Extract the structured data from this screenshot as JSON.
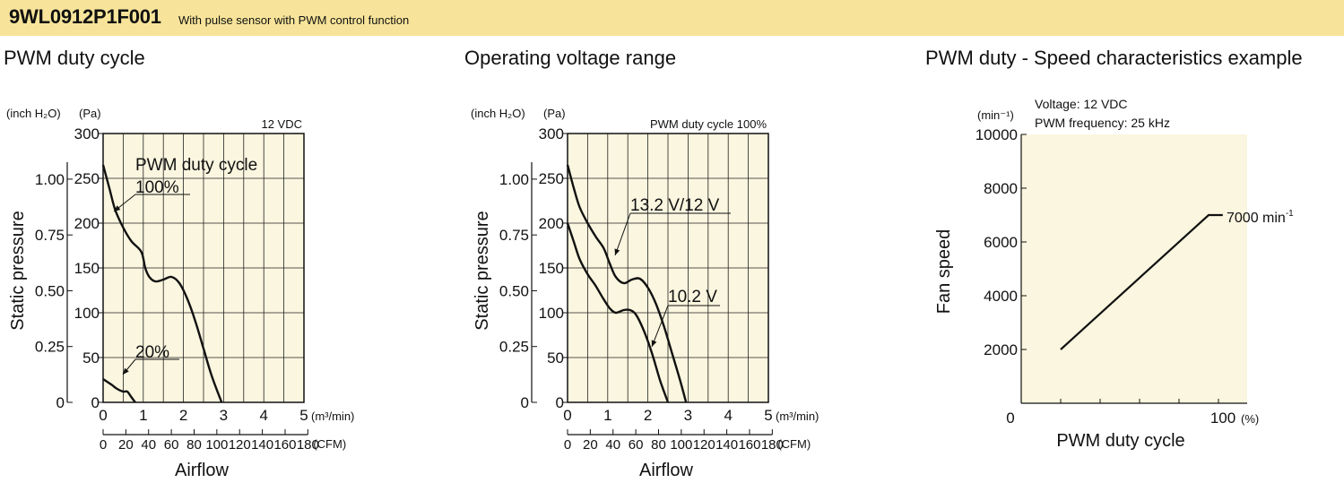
{
  "header": {
    "model": "9WL0912P1F001",
    "subtitle": "With pulse sensor with PWM control function",
    "background": "#f7e49a"
  },
  "plot_background": "#faf6df",
  "chart_data": [
    {
      "type": "line",
      "title": "PWM duty cycle",
      "condition": "12 VDC",
      "xlabel": "Airflow",
      "ylabel": "Static pressure",
      "x_unit": "(m³/min)",
      "x2_unit": "(CFM)",
      "y_unit_left": "(inch H₂O)",
      "y_unit_right": "(Pa)",
      "xlim": [
        0,
        5
      ],
      "ylim": [
        0,
        300
      ],
      "x_ticks": [
        "0",
        "1",
        "2",
        "3",
        "4",
        "5"
      ],
      "y_ticks": [
        "0",
        "50",
        "100",
        "150",
        "200",
        "250",
        "300"
      ],
      "y2_ticks": [
        "0",
        "0.25",
        "0.50",
        "0.75",
        "1.00"
      ],
      "x2_ticks": [
        "0",
        "20",
        "40",
        "60",
        "80",
        "100",
        "120",
        "140",
        "160",
        "180"
      ],
      "grid": true,
      "legend_title": "PWM duty cycle",
      "series": [
        {
          "name": "100%",
          "x": [
            0,
            0.15,
            0.3,
            0.5,
            0.7,
            0.95,
            1.05,
            1.15,
            1.3,
            1.5,
            1.7,
            1.9,
            2.1,
            2.3,
            2.5,
            2.7,
            2.95
          ],
          "y": [
            265,
            240,
            215,
            195,
            180,
            168,
            150,
            140,
            135,
            137,
            140,
            133,
            115,
            90,
            60,
            30,
            0
          ]
        },
        {
          "name": "20%",
          "x": [
            0,
            0.2,
            0.35,
            0.5,
            0.6,
            0.7,
            0.8
          ],
          "y": [
            26,
            20,
            15,
            12,
            12,
            6,
            0
          ]
        }
      ]
    },
    {
      "type": "line",
      "title": "Operating voltage range",
      "condition": "PWM duty cycle 100%",
      "xlabel": "Airflow",
      "ylabel": "Static pressure",
      "x_unit": "(m³/min)",
      "x2_unit": "(CFM)",
      "y_unit_left": "(inch H₂O)",
      "y_unit_right": "(Pa)",
      "xlim": [
        0,
        5
      ],
      "ylim": [
        0,
        300
      ],
      "x_ticks": [
        "0",
        "1",
        "2",
        "3",
        "4",
        "5"
      ],
      "y_ticks": [
        "0",
        "50",
        "100",
        "150",
        "200",
        "250",
        "300"
      ],
      "y2_ticks": [
        "0",
        "0.25",
        "0.50",
        "0.75",
        "1.00"
      ],
      "x2_ticks": [
        "0",
        "20",
        "40",
        "60",
        "80",
        "100",
        "120",
        "140",
        "160",
        "180"
      ],
      "grid": true,
      "series": [
        {
          "name": "13.2 V/12 V",
          "x": [
            0,
            0.15,
            0.3,
            0.5,
            0.7,
            0.9,
            1.05,
            1.2,
            1.4,
            1.6,
            1.8,
            2.0,
            2.2,
            2.4,
            2.6,
            2.8,
            2.95
          ],
          "y": [
            265,
            240,
            218,
            200,
            185,
            172,
            155,
            140,
            133,
            137,
            138,
            128,
            110,
            85,
            55,
            25,
            0
          ]
        },
        {
          "name": "10.2 V",
          "x": [
            0,
            0.15,
            0.3,
            0.5,
            0.7,
            0.9,
            1.05,
            1.2,
            1.4,
            1.55,
            1.7,
            1.9,
            2.1,
            2.3,
            2.5
          ],
          "y": [
            200,
            180,
            160,
            143,
            130,
            115,
            105,
            100,
            103,
            103,
            98,
            80,
            55,
            25,
            0
          ]
        }
      ]
    },
    {
      "type": "line",
      "title": "PWM duty - Speed characteristics example",
      "conditions": [
        "Voltage: 12 VDC",
        "PWM frequency: 25 kHz"
      ],
      "xlabel": "PWM duty cycle",
      "ylabel": "Fan speed",
      "y_unit": "(min⁻¹)",
      "x_unit": "(%)",
      "xlim": [
        0,
        100
      ],
      "ylim": [
        0,
        10000
      ],
      "x_ticks": [
        "0",
        "100"
      ],
      "y_ticks": [
        "2000",
        "4000",
        "6000",
        "8000",
        "10000"
      ],
      "grid": false,
      "series": [
        {
          "name": "",
          "x": [
            20,
            93,
            100
          ],
          "y": [
            2000,
            7000,
            7000
          ]
        }
      ],
      "annotation": {
        "text": "7000 min",
        "sup": "-1"
      }
    }
  ]
}
